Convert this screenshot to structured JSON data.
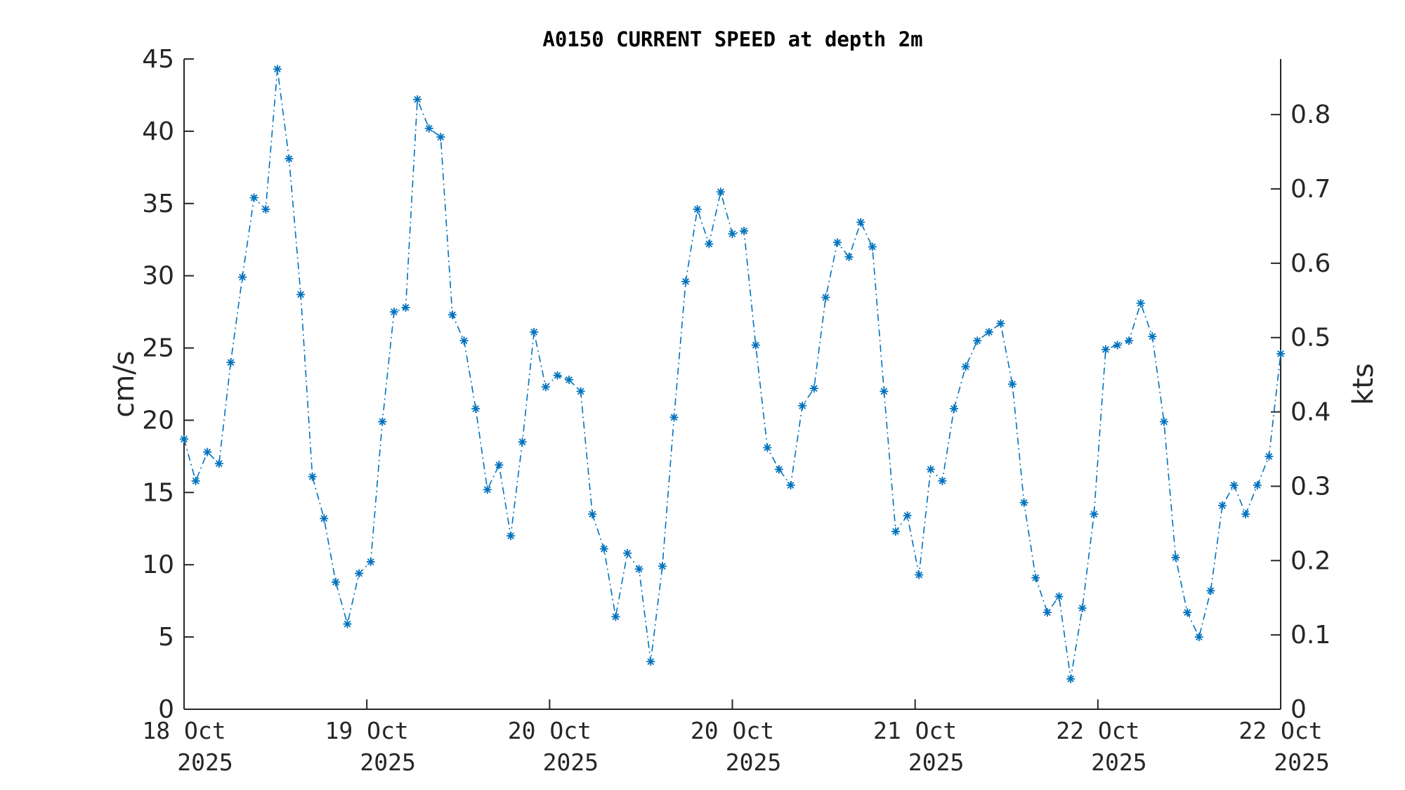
{
  "chart_data": {
    "type": "line",
    "title": "A0150 CURRENT SPEED at depth 2m",
    "ylabel": "cm/s",
    "y2label": "kts",
    "ylim": [
      0,
      45
    ],
    "y2lim": [
      0,
      0.8748
    ],
    "yticks": [
      "0",
      "5",
      "10",
      "15",
      "20",
      "25",
      "30",
      "35",
      "40",
      "45"
    ],
    "y2ticks": [
      "0",
      "0.1",
      "0.2",
      "0.3",
      "0.4",
      "0.5",
      "0.6",
      "0.7",
      "0.8"
    ],
    "xticks": [
      {
        "line1": "18 Oct",
        "line2": "2025"
      },
      {
        "line1": "19 Oct",
        "line2": "2025"
      },
      {
        "line1": "20 Oct",
        "line2": "2025"
      },
      {
        "line1": "20 Oct",
        "line2": "2025"
      },
      {
        "line1": "21 Oct",
        "line2": "2025"
      },
      {
        "line1": "22 Oct",
        "line2": "2025"
      },
      {
        "line1": "22 Oct",
        "line2": "2025"
      }
    ],
    "grid": false,
    "legend": "none",
    "series_color": "#0072BD",
    "marker": "asterisk",
    "linestyle": "dash-dot",
    "series": [
      {
        "values": [
          18.7,
          15.8,
          17.8,
          17.0,
          24.0,
          29.9,
          35.4,
          34.6,
          44.3,
          38.1,
          28.7,
          16.1,
          13.2,
          8.8,
          5.9,
          9.4,
          10.2,
          19.9,
          27.5,
          27.8,
          42.2,
          40.2,
          39.6,
          27.3,
          25.5,
          20.8,
          15.2,
          16.9,
          12.0,
          18.5,
          26.1,
          22.3,
          23.1,
          22.8,
          22.0,
          13.5,
          11.1,
          6.4,
          10.8,
          9.7,
          3.3,
          9.9,
          20.2,
          29.6,
          34.6,
          32.2,
          35.8,
          32.9,
          33.1,
          25.2,
          18.1,
          16.6,
          15.5,
          21.0,
          22.2,
          28.5,
          32.3,
          31.3,
          33.7,
          32.0,
          22.0,
          12.3,
          13.4,
          9.3,
          16.6,
          15.8,
          20.8,
          23.7,
          25.5,
          26.1,
          26.7,
          22.5,
          14.3,
          9.1,
          6.7,
          7.8,
          2.1,
          7.0,
          13.5,
          24.9,
          25.2,
          25.5,
          28.1,
          25.8,
          19.9,
          10.5,
          6.7,
          5.0,
          8.2,
          14.1,
          15.5,
          13.5,
          15.5,
          17.5,
          24.6
        ]
      }
    ]
  }
}
